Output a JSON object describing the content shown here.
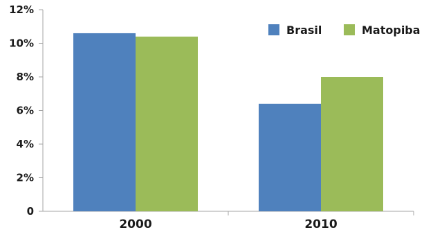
{
  "chart_data": {
    "type": "bar",
    "categories": [
      "2000",
      "2010"
    ],
    "series": [
      {
        "name": "Brasil",
        "values": [
          10.6,
          6.4
        ],
        "color": "#4f81bd"
      },
      {
        "name": "Matopiba",
        "values": [
          10.4,
          8.0
        ],
        "color": "#9bbb59"
      }
    ],
    "ylim": [
      0,
      12
    ],
    "yticks": [
      0,
      2,
      4,
      6,
      8,
      10,
      12
    ],
    "ytick_labels": [
      "0",
      "2%",
      "4%",
      "6%",
      "8%",
      "10%",
      "12%"
    ],
    "axis_color": "#a6a6a6",
    "grid": false,
    "legend_position": "top-right"
  }
}
